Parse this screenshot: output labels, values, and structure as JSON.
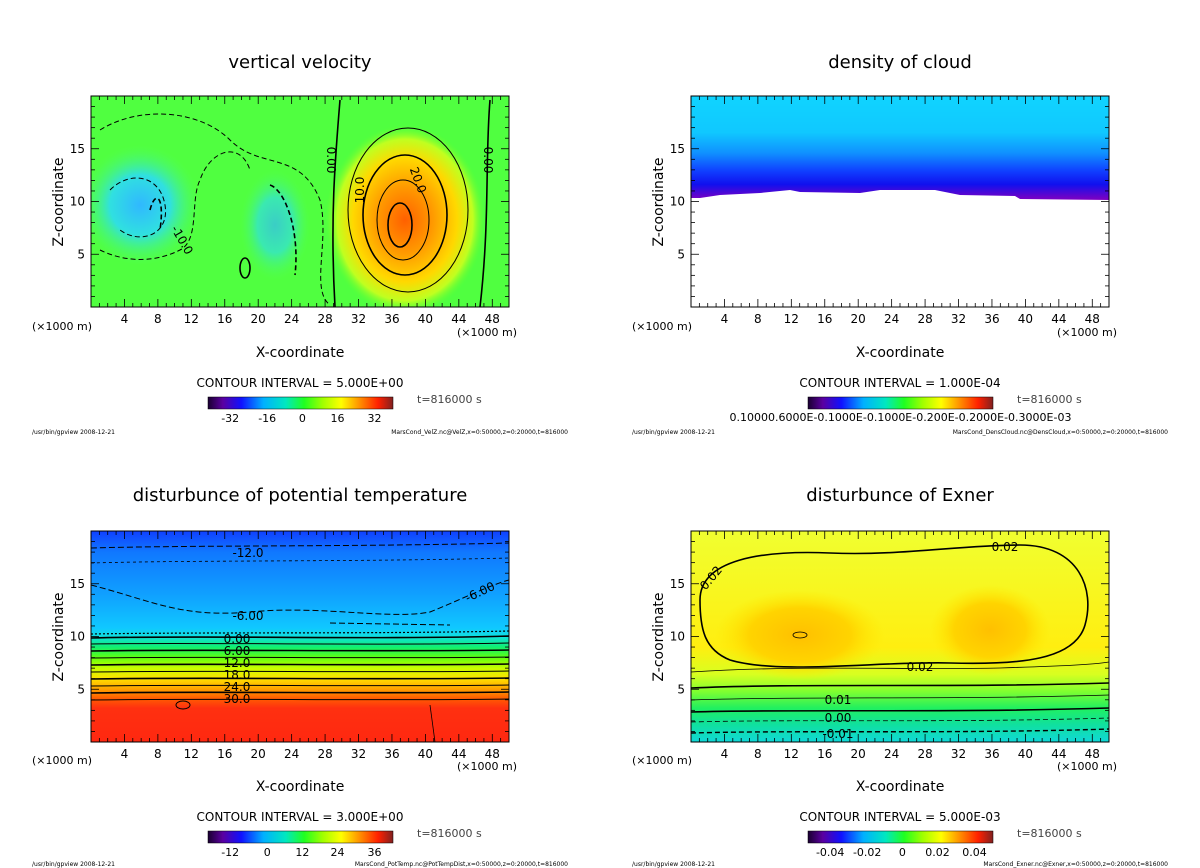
{
  "chart_data": [
    {
      "type": "heatmap",
      "title": "vertical velocity",
      "xlabel": "X-coordinate",
      "ylabel": "Z-coordinate",
      "x_unit_left": "(×1000 m)",
      "x_unit_right": "(×1000 m)",
      "xlim": [
        0,
        50
      ],
      "ylim": [
        0,
        20
      ],
      "xticks": [
        4,
        8,
        12,
        16,
        20,
        24,
        28,
        32,
        36,
        40,
        44,
        48
      ],
      "yticks": [
        5,
        10,
        15
      ],
      "contour_labels": [
        "0.00",
        "10.0",
        "20.0",
        "-10.0",
        "0.00"
      ],
      "contour_interval": "CONTOUR INTERVAL = 5.000E+00",
      "time": "t=816000 s",
      "colorbar_ticks": [
        "-32",
        "-16",
        "0",
        "16",
        "32"
      ],
      "footer_left": "/usr/bin/gpview  2008-12-21",
      "footer_right": "MarsCond_VelZ.nc@VelZ,x=0:50000,z=0:20000,t=816000"
    },
    {
      "type": "heatmap",
      "title": "density of cloud",
      "xlabel": "X-coordinate",
      "ylabel": "Z-coordinate",
      "x_unit_left": "(×1000 m)",
      "x_unit_right": "(×1000 m)",
      "xlim": [
        0,
        50
      ],
      "ylim": [
        0,
        20
      ],
      "xticks": [
        4,
        8,
        12,
        16,
        20,
        24,
        28,
        32,
        36,
        40,
        44,
        48
      ],
      "yticks": [
        5,
        10,
        15
      ],
      "contour_labels": [],
      "contour_interval": "CONTOUR INTERVAL = 1.000E-04",
      "time": "t=816000 s",
      "colorbar_ticks": [
        "0.10000.6000E-0.1000E-0.1000E-0.200E-0.2000E-0.3000E-03"
      ],
      "footer_left": "/usr/bin/gpview  2008-12-21",
      "footer_right": "MarsCond_DensCloud.nc@DensCloud,x=0:50000,z=0:20000,t=816000"
    },
    {
      "type": "heatmap",
      "title": "disturbunce of potential temperature",
      "xlabel": "X-coordinate",
      "ylabel": "Z-coordinate",
      "x_unit_left": "(×1000 m)",
      "x_unit_right": "(×1000 m)",
      "xlim": [
        0,
        50
      ],
      "ylim": [
        0,
        20
      ],
      "xticks": [
        4,
        8,
        12,
        16,
        20,
        24,
        28,
        32,
        36,
        40,
        44,
        48
      ],
      "yticks": [
        5,
        10,
        15
      ],
      "contour_labels": [
        "-12.0",
        "-6.00",
        "-6.00",
        "0.00",
        "6.00",
        "12.0",
        "18.0",
        "24.0",
        "30.0"
      ],
      "contour_interval": "CONTOUR INTERVAL = 3.000E+00",
      "time": "t=816000 s",
      "colorbar_ticks": [
        "-12",
        "0",
        "12",
        "24",
        "36"
      ],
      "footer_left": "/usr/bin/gpview  2008-12-21",
      "footer_right": "MarsCond_PotTemp.nc@PotTempDist,x=0:50000,z=0:20000,t=816000"
    },
    {
      "type": "heatmap",
      "title": "disturbunce of Exner",
      "xlabel": "X-coordinate",
      "ylabel": "Z-coordinate",
      "x_unit_left": "(×1000 m)",
      "x_unit_right": "(×1000 m)",
      "xlim": [
        0,
        50
      ],
      "ylim": [
        0,
        20
      ],
      "xticks": [
        4,
        8,
        12,
        16,
        20,
        24,
        28,
        32,
        36,
        40,
        44,
        48
      ],
      "yticks": [
        5,
        10,
        15
      ],
      "contour_labels": [
        "0.02",
        "0.02",
        "0.02",
        "0.01",
        "0.00",
        "-0.01"
      ],
      "contour_interval": "CONTOUR INTERVAL = 5.000E-03",
      "time": "t=816000 s",
      "colorbar_ticks": [
        "-0.04",
        "-0.02",
        "0",
        "0.02",
        "0.04"
      ],
      "footer_left": "/usr/bin/gpview  2008-12-21",
      "footer_right": "MarsCond_Exner.nc@Exner,x=0:50000,z=0:20000,t=816000"
    }
  ]
}
